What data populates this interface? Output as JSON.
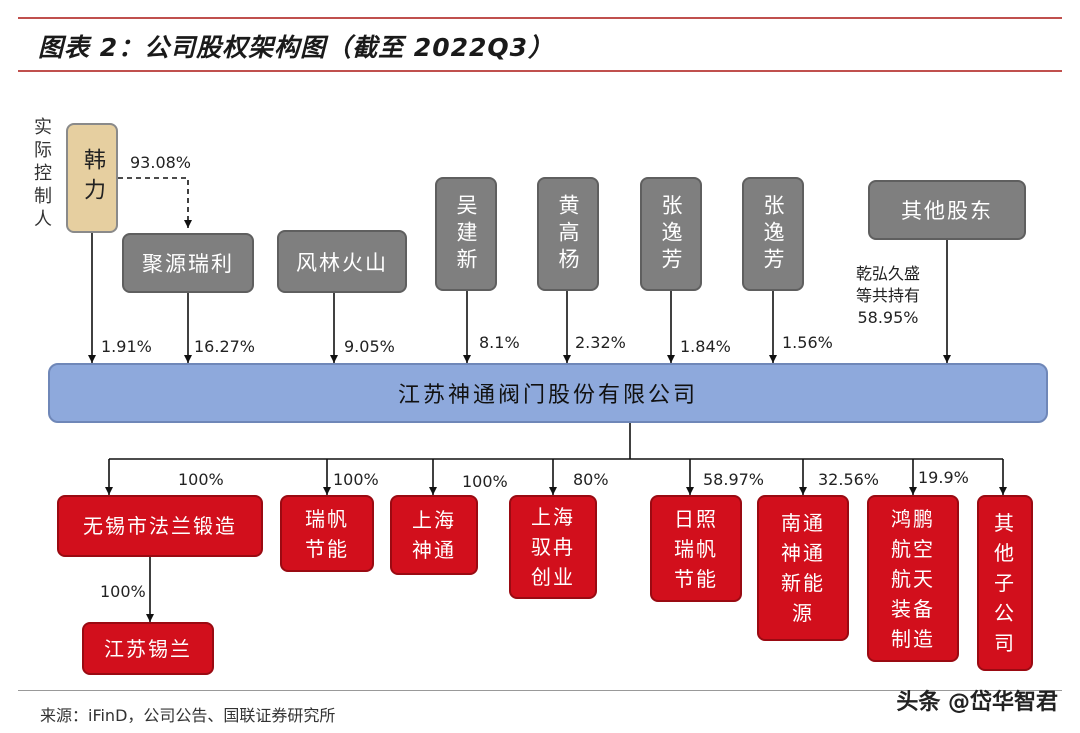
{
  "title": "图表 2：公司股权架构图（截至 2022Q3）",
  "actual_controller_label": "实\n际\n控\n制\n人",
  "actual_controller": "韩力",
  "controller_share": "93.08%",
  "shareholders": [
    {
      "name": "聚源瑞利",
      "pct": "16.27%"
    },
    {
      "name": "风林火山",
      "pct": "9.05%"
    },
    {
      "name": "吴建新",
      "pct": "8.1%"
    },
    {
      "name": "黄高杨",
      "pct": "2.32%"
    },
    {
      "name": "张逸芳",
      "pct": "1.84%"
    },
    {
      "name": "张逸芳",
      "pct": "1.56%"
    },
    {
      "name": "其他股东",
      "note": "乾弘久盛\n等共持有\n58.95%"
    }
  ],
  "han_li_direct_pct": "1.91%",
  "company": "江苏神通阀门股份有限公司",
  "subsidiaries": [
    {
      "name": "无锡市法兰锻造",
      "pct": "100%"
    },
    {
      "name": "瑞帆\n节能",
      "pct": "100%"
    },
    {
      "name": "上海\n神通",
      "pct": "100%"
    },
    {
      "name": "上海\n驭冉\n创业",
      "pct": "80%"
    },
    {
      "name": "日照\n瑞帆\n节能",
      "pct": "58.97%"
    },
    {
      "name": "南通\n神通\n新能\n源",
      "pct": "32.56%"
    },
    {
      "name": "鸿鹏\n航空\n航天\n装备\n制造",
      "pct": "19.9%"
    },
    {
      "name": "其\n他\n子\n公\n司",
      "pct": ""
    }
  ],
  "sub_subsidiary": {
    "name": "江苏锡兰",
    "pct": "100%"
  },
  "source": "来源：iFinD，公司公告、国联证券研究所",
  "watermark": "头条 @岱华智君",
  "colors": {
    "accent_line": "#c0504d",
    "shareholder_box": "#7f7f7f",
    "controller_box": "#e6cfa0",
    "company_box": "#8ea9dc",
    "subsidiary_box": "#d20f1c"
  }
}
